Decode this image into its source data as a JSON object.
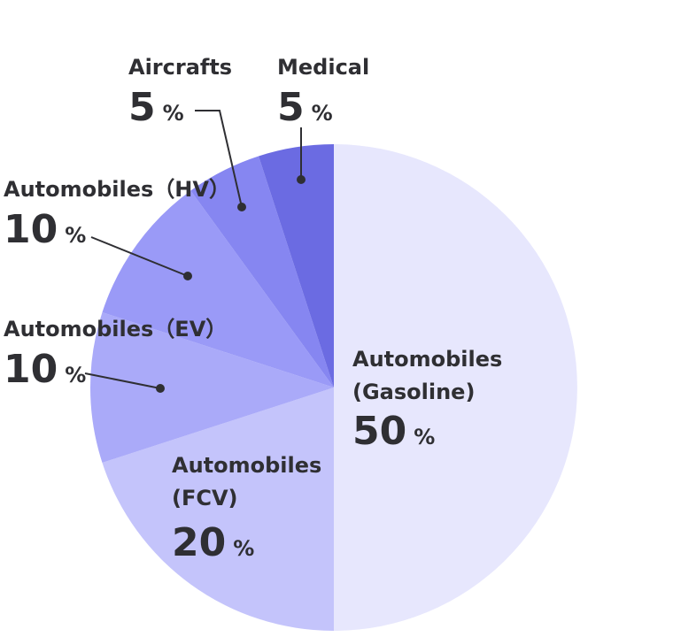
{
  "chart_data": {
    "type": "pie",
    "title": "",
    "slices": [
      {
        "label": "Automobiles (Gasoline)",
        "label_lines": [
          "Automobiles",
          "(Gasoline)"
        ],
        "value": 50,
        "value_text": "50",
        "unit": "%",
        "color": "#e7e7fd"
      },
      {
        "label": "Automobiles (FCV)",
        "label_lines": [
          "Automobiles",
          "(FCV)"
        ],
        "value": 20,
        "value_text": "20",
        "unit": "%",
        "color": "#c4c4fb"
      },
      {
        "label": "Automobiles (EV)",
        "label_lines": [
          "Automobiles（EV）"
        ],
        "value": 10,
        "value_text": "10",
        "unit": "%",
        "color": "#aaaaf9"
      },
      {
        "label": "Automobiles (HV)",
        "label_lines": [
          "Automobiles（HV）"
        ],
        "value": 10,
        "value_text": "10",
        "unit": "%",
        "color": "#9a9af7"
      },
      {
        "label": "Aircrafts",
        "label_lines": [
          "Aircrafts"
        ],
        "value": 5,
        "value_text": "5",
        "unit": "%",
        "color": "#8686f1"
      },
      {
        "label": "Medical",
        "label_lines": [
          "Medical"
        ],
        "value": 5,
        "value_text": "5",
        "unit": "%",
        "color": "#6b6be2"
      }
    ],
    "start_angle_deg": 0,
    "direction": "clockwise",
    "legend": "none"
  }
}
